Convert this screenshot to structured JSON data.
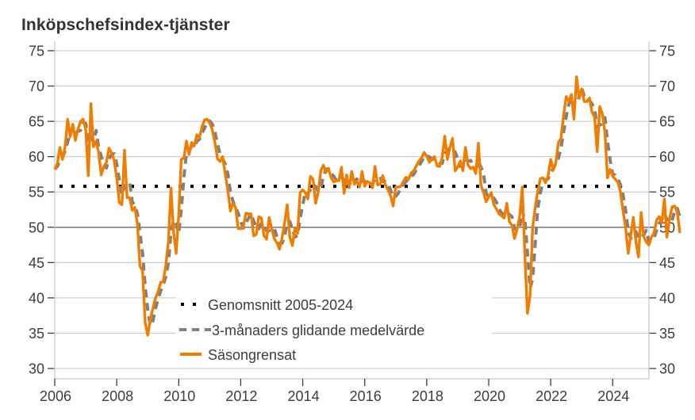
{
  "chart_data": {
    "type": "line",
    "title": "Inköpschefsindex-tjänster",
    "xlabel": "",
    "ylabel": "",
    "x_start": "2006-01",
    "frequency": "monthly",
    "xlim": [
      2006,
      2025.2
    ],
    "ylim": [
      30,
      75
    ],
    "y_ticks": [
      30,
      35,
      40,
      45,
      50,
      55,
      60,
      65,
      70,
      75
    ],
    "y_tick_labels": [
      "30",
      "35",
      "40",
      "45",
      "50",
      "55",
      "60",
      "65",
      "70",
      "75"
    ],
    "x_ticks": [
      2006,
      2008,
      2010,
      2012,
      2014,
      2016,
      2018,
      2020,
      2022,
      2024
    ],
    "x_tick_labels": [
      "2006",
      "2008",
      "2010",
      "2012",
      "2014",
      "2016",
      "2018",
      "2020",
      "2022",
      "2024"
    ],
    "grid": true,
    "reference_line": 50,
    "dual_y_axis": true,
    "legend_position": "bottom-center",
    "series": [
      {
        "name": "Genomsnitt 2005-2024",
        "style": "dotted",
        "color": "#000000",
        "value": 55.8
      },
      {
        "name": "3-månaders glidande medelvärde",
        "style": "dashed",
        "color": "#808080",
        "values": []
      },
      {
        "name": "Säsongrensat",
        "style": "solid",
        "color": "#F07D00",
        "values": [
          58.2,
          59.0,
          61.3,
          59.6,
          61.4,
          65.3,
          62.8,
          64.6,
          62.3,
          63.9,
          65.0,
          65.3,
          63.8,
          57.3,
          67.5,
          61.4,
          62.2,
          60.6,
          57.4,
          58.6,
          59.2,
          61.2,
          60.5,
          59.5,
          57.0,
          53.5,
          53.2,
          60.9,
          54.2,
          54.2,
          52.4,
          52.8,
          50.5,
          44.5,
          43.8,
          36.5,
          34.7,
          37.0,
          38.5,
          40.0,
          40.8,
          42.2,
          42.3,
          44.6,
          48.0,
          55.6,
          49.3,
          46.3,
          51.8,
          59.6,
          59.8,
          62.2,
          60.3,
          62.0,
          61.5,
          63.1,
          62.7,
          64.2,
          65.2,
          65.3,
          64.7,
          63.8,
          62.0,
          59.7,
          59.3,
          60.0,
          57.5,
          55.3,
          52.3,
          53.4,
          52.8,
          49.8,
          49.8,
          50.0,
          52.0,
          51.9,
          51.9,
          48.8,
          49.0,
          51.5,
          51.3,
          48.8,
          48.3,
          51.4,
          49.8,
          48.4,
          47.8,
          46.9,
          48.5,
          50.7,
          53.2,
          48.6,
          47.4,
          49.9,
          49.1,
          54.9,
          55.3,
          54.9,
          54.0,
          57.2,
          56.8,
          53.4,
          55.0,
          58.0,
          58.8,
          57.8,
          58.3,
          57.0,
          56.4,
          56.6,
          56.6,
          58.5,
          54.8,
          57.4,
          55.6,
          57.9,
          56.1,
          56.5,
          55.7,
          57.9,
          55.8,
          56.5,
          56.3,
          55.6,
          58.6,
          56.0,
          56.1,
          57.3,
          56.0,
          55.3,
          54.5,
          53.0,
          55.7,
          55.7,
          55.8,
          56.5,
          57.1,
          56.8,
          57.7,
          58.0,
          58.7,
          59.4,
          59.8,
          60.6,
          60.1,
          59.2,
          59.6,
          60.0,
          58.7,
          58.6,
          59.9,
          62.9,
          59.6,
          61.3,
          62.6,
          58.0,
          58.5,
          59.4,
          58.0,
          61.3,
          58.8,
          58.3,
          58.5,
          57.6,
          61.9,
          56.0,
          54.9,
          53.6,
          54.3,
          54.9,
          53.2,
          52.6,
          51.9,
          51.6,
          51.3,
          53.4,
          50.8,
          50.3,
          48.4,
          49.8,
          51.5,
          55.7,
          45.9,
          37.8,
          40.3,
          49.9,
          52.8,
          55.1,
          56.9,
          57.0,
          56.3,
          57.3,
          59.6,
          58.1,
          59.2,
          62.0,
          62.6,
          65.9,
          68.5,
          67.8,
          68.8,
          65.3,
          71.3,
          68.3,
          69.6,
          67.8,
          67.8,
          68.3,
          66.3,
          65.6,
          60.7,
          67.1,
          66.1,
          63.4,
          57.0,
          58.2,
          57.2,
          56.8,
          56.4,
          55.0,
          52.3,
          50.0,
          46.3,
          48.9,
          51.4,
          47.9,
          45.8,
          52.1,
          48.7,
          47.9,
          47.5,
          48.6,
          49.2,
          51.0,
          51.5,
          50.6,
          54.0,
          48.6,
          51.2,
          52.9,
          53.0,
          52.1,
          49.2
        ]
      }
    ]
  }
}
